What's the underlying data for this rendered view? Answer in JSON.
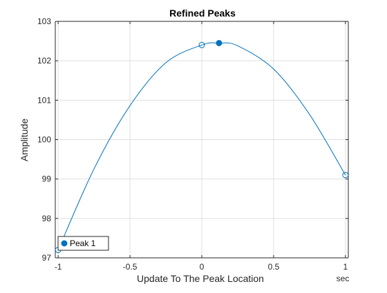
{
  "chart_data": {
    "type": "line",
    "title": "Refined Peaks",
    "xlabel": "Update To The Peak Location",
    "ylabel": "Amplitude",
    "x_unit": "sec",
    "xlim": [
      -1.02,
      1.02
    ],
    "ylim": [
      97,
      103
    ],
    "xticks": [
      -1,
      -0.5,
      0,
      0.5,
      1
    ],
    "xtick_labels": [
      "-1",
      "-0.5",
      "0",
      "0.5",
      "1"
    ],
    "yticks": [
      97,
      98,
      99,
      100,
      101,
      102,
      103
    ],
    "ytick_labels": [
      "97",
      "98",
      "99",
      "100",
      "101",
      "102",
      "103"
    ],
    "grid": true,
    "legend_position": "bottom-left",
    "colors": {
      "series": "#0072BD",
      "axis": "#262626",
      "grid": "#DFDFDF"
    },
    "series": [
      {
        "kind": "curve",
        "x": [
          -1,
          -0.75,
          -0.5,
          -0.25,
          0,
          0.12,
          0.25,
          0.5,
          0.75,
          1
        ],
        "y": [
          97.2,
          99.26,
          100.86,
          101.95,
          102.4,
          102.45,
          102.38,
          101.79,
          100.64,
          99.1
        ]
      },
      {
        "kind": "samples",
        "marker": "open-circle",
        "x": [
          -1,
          0,
          1
        ],
        "y": [
          97.2,
          102.4,
          99.1
        ]
      },
      {
        "kind": "peak",
        "name": "Peak 1",
        "marker": "filled-circle",
        "x": [
          0.12
        ],
        "y": [
          102.45
        ]
      }
    ]
  }
}
